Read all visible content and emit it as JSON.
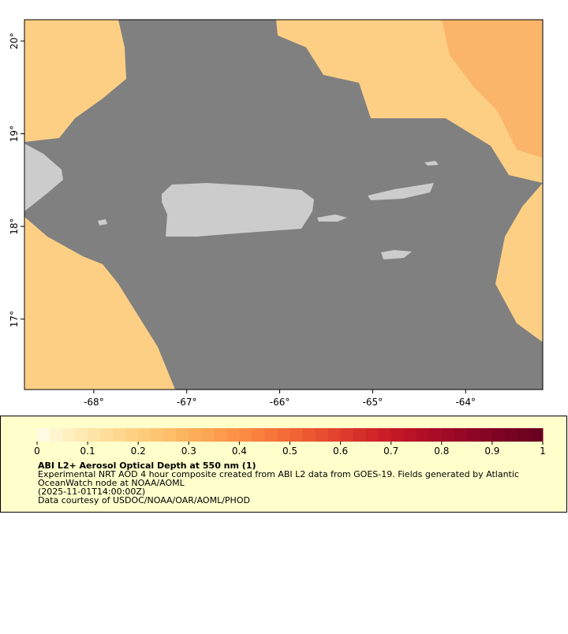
{
  "map": {
    "xlim": [
      -68.746,
      -63.17
    ],
    "ylim": [
      16.24,
      20.23
    ],
    "xticks": [
      {
        "value": -68,
        "label": "-68°"
      },
      {
        "value": -67,
        "label": "-67°"
      },
      {
        "value": -66,
        "label": "-66°"
      },
      {
        "value": -65,
        "label": "-65°"
      },
      {
        "value": -64,
        "label": "-64°"
      }
    ],
    "yticks": [
      {
        "value": 17,
        "label": "17°"
      },
      {
        "value": 18,
        "label": "18°"
      },
      {
        "value": 19,
        "label": "19°"
      },
      {
        "value": 20,
        "label": "20°"
      }
    ]
  },
  "colorbar": {
    "lim": [
      0,
      1
    ],
    "ticks": [
      0,
      0.1,
      0.2,
      0.3,
      0.4,
      0.5,
      0.6,
      0.7,
      0.8,
      0.9,
      1
    ],
    "colors": [
      "#fffbe4",
      "#fff5cf",
      "#fff0c0",
      "#feeab2",
      "#fee4a6",
      "#fede9a",
      "#fed890",
      "#fed285",
      "#fdcc7b",
      "#fdc572",
      "#fdbd69",
      "#fdb560",
      "#fdad58",
      "#fca552",
      "#fc9c4c",
      "#fc9346",
      "#fb8a42",
      "#f9803e",
      "#f7763a",
      "#f46c37",
      "#f16234",
      "#ec5832",
      "#e74e2f",
      "#e2442d",
      "#dc3a2b",
      "#d6302a",
      "#d02628",
      "#c91e27",
      "#c21826",
      "#ba1326",
      "#b10f26",
      "#a80c26",
      "#9f0a26",
      "#960826",
      "#8d0625",
      "#850524",
      "#7d0423",
      "#760322",
      "#700221",
      "#6a0120"
    ]
  },
  "legend": {
    "title": "ABI L2+ Aerosol Optical Depth at 550 nm (1)",
    "lines": [
      "Experimental NRT AOD 4 hour composite created from ABI L2 data from GOES-19. Fields generated by Atlantic",
      "OceanWatch node at NOAA/AOML",
      "(2025-11-01T14:00:00Z)",
      "Data courtesy of USDOC/NOAA/OAR/AOML/PHOD"
    ]
  }
}
